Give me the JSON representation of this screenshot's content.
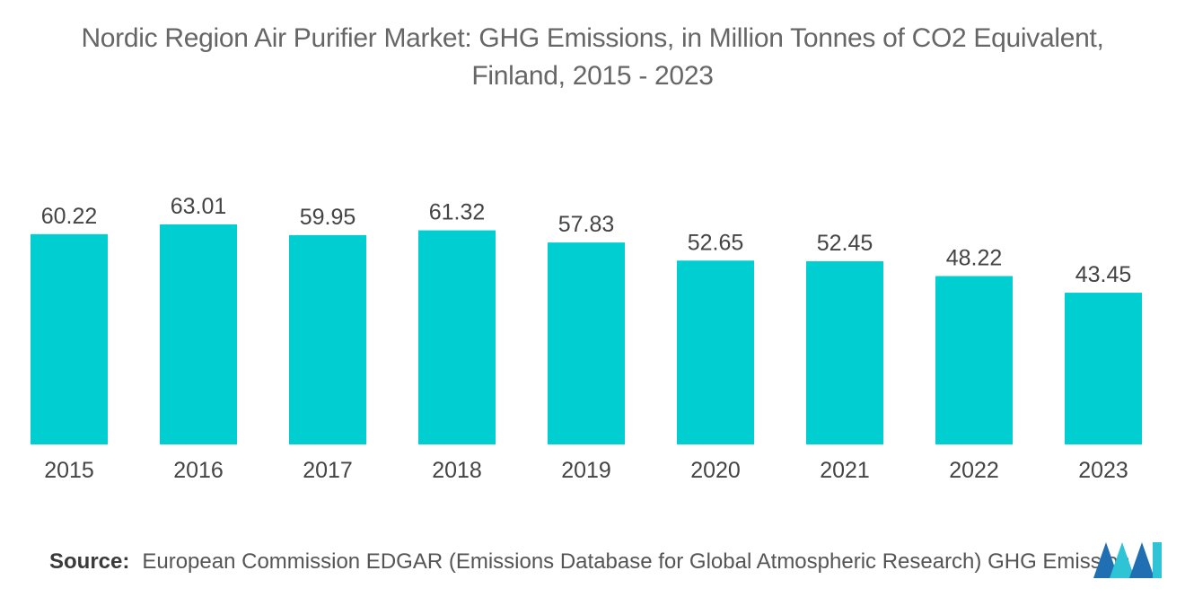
{
  "chart_data": {
    "type": "bar",
    "title_line1": "Nordic Region Air Purifier Market: GHG Emissions, in Million Tonnes of CO2 Equivalent,",
    "title_line2": "Finland, 2015 - 2023",
    "categories": [
      "2015",
      "2016",
      "2017",
      "2018",
      "2019",
      "2020",
      "2021",
      "2022",
      "2023"
    ],
    "values": [
      60.22,
      63.01,
      59.95,
      61.32,
      57.83,
      52.65,
      52.45,
      48.22,
      43.45
    ],
    "value_labels": [
      "60.22",
      "63.01",
      "59.95",
      "61.32",
      "57.83",
      "52.65",
      "52.45",
      "48.22",
      "43.45"
    ],
    "xlabel": "",
    "ylabel": "",
    "ylim": [
      0,
      63.01
    ],
    "grid": false,
    "bar_color": "#00CED1"
  },
  "source": {
    "label": "Source:",
    "text": "European Commission EDGAR (Emissions Database for Global Atmospheric Research) GHG Emission"
  },
  "logo": {
    "icon": "mordor-intelligence-logo-icon",
    "colors": [
      "#1F6FB2",
      "#2EC4D6"
    ]
  }
}
